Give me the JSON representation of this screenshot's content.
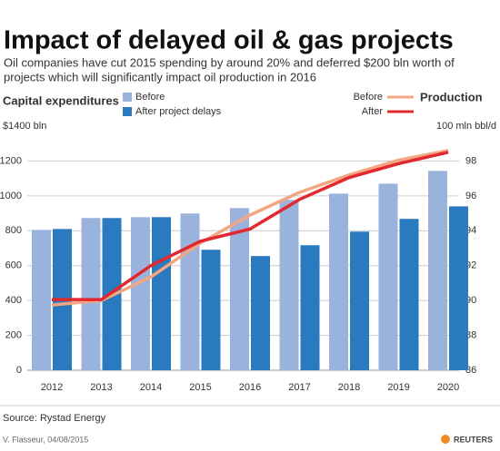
{
  "chart_data": {
    "type": "bar",
    "title": "Impact of delayed oil & gas projects",
    "subtitle": [
      "Oil companies have cut 2015 spending by around 20% and deferred $200 bln worth of",
      "projects which will significantly impact oil production in 2016"
    ],
    "y_label": "Capital expenditures",
    "y2_label": "Production",
    "categories": [
      "2012",
      "2013",
      "2014",
      "2015",
      "2016",
      "2017",
      "2018",
      "2019",
      "2020"
    ],
    "series": [
      {
        "name": "Before",
        "color": "#9ab3dc",
        "values": [
          805,
          873,
          878,
          899,
          930,
          977,
          1013,
          1070,
          1143
        ]
      },
      {
        "name": "After project delays",
        "color": "#2a7ac0",
        "values": [
          810,
          873,
          878,
          691,
          655,
          717,
          795,
          868,
          940
        ]
      },
      {
        "name": "Before",
        "type": "line",
        "axis": "y2",
        "color": "#f4a582",
        "values": [
          89.74,
          90.0,
          91.35,
          93.3,
          94.9,
          96.2,
          97.2,
          98.05,
          98.6
        ]
      },
      {
        "name": "After",
        "type": "line",
        "axis": "y2",
        "color": "#e0282e",
        "values": [
          90.05,
          90.05,
          92.0,
          93.4,
          94.1,
          95.8,
          97.05,
          97.85,
          98.5
        ]
      }
    ],
    "ylim": [
      0,
      1400
    ],
    "yticks": [
      0,
      200,
      400,
      600,
      800,
      1000,
      1200,
      {
        "value": 1400,
        "label": "$1400 bln"
      }
    ],
    "y2lim": [
      86,
      100
    ],
    "y2ticks": [
      86,
      88,
      90,
      92,
      94,
      96,
      98,
      {
        "value": 100,
        "label": "100 mln bbl/d"
      }
    ],
    "grid": true,
    "source": "Source: Rystad Energy",
    "credit": "V. Flasseur, 04/08/2015",
    "logo": "REUTERS"
  }
}
